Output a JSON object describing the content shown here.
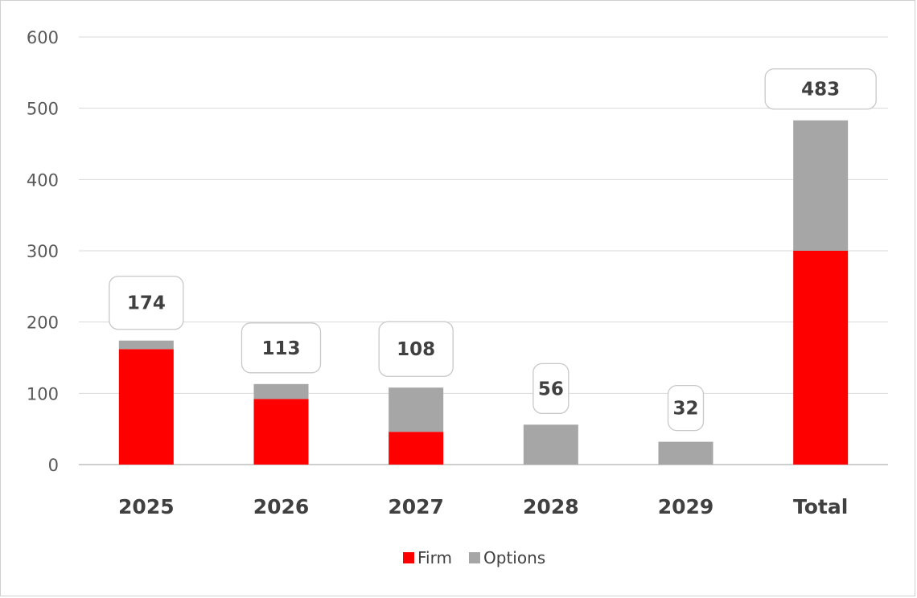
{
  "chart_data": {
    "type": "bar",
    "stacked": true,
    "title": "",
    "xlabel": "",
    "ylabel": "",
    "categories": [
      "2025",
      "2026",
      "2027",
      "2028",
      "2029",
      "Total"
    ],
    "series": [
      {
        "name": "Firm",
        "color": "#ff0000",
        "values": [
          162,
          92,
          46,
          0,
          0,
          300
        ]
      },
      {
        "name": "Options",
        "color": "#a6a6a6",
        "values": [
          12,
          21,
          62,
          56,
          32,
          183
        ]
      }
    ],
    "totals": [
      174,
      113,
      108,
      56,
      32,
      483
    ],
    "data_labels": [
      "174",
      "113",
      "108",
      "56",
      "32",
      "483"
    ],
    "ylim": [
      0,
      600
    ],
    "yticks": [
      0,
      100,
      200,
      300,
      400,
      500,
      600
    ],
    "grid": true,
    "legend_position": "bottom"
  }
}
